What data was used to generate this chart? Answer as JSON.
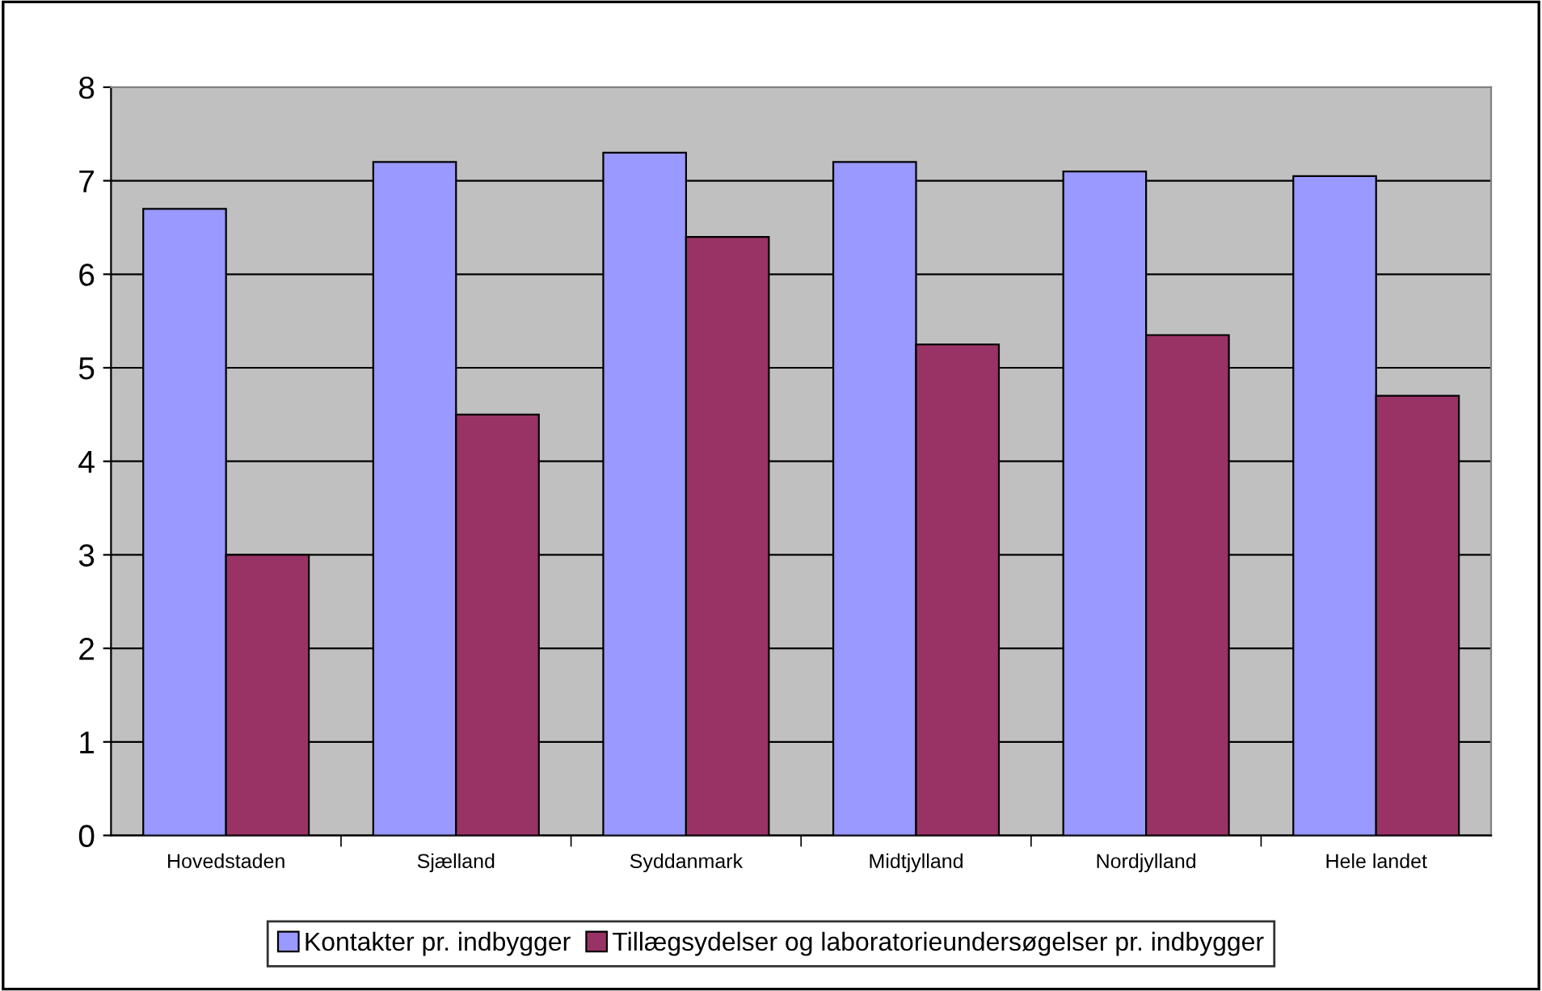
{
  "chart_data": {
    "type": "bar",
    "categories": [
      "Hovedstaden",
      "Sjælland",
      "Syddanmark",
      "Midtjylland",
      "Nordjylland",
      "Hele landet"
    ],
    "series": [
      {
        "name": "Kontakter pr. indbygger",
        "color": "#9999ff",
        "values": [
          6.7,
          7.2,
          7.3,
          7.2,
          7.1,
          7.05
        ]
      },
      {
        "name": "Tillægsydelser og laboratorieundersøgelser pr. indbygger",
        "color": "#993366",
        "values": [
          3.0,
          4.5,
          6.4,
          5.25,
          5.35,
          4.7
        ]
      }
    ],
    "ylim": [
      0,
      8
    ],
    "yticks": [
      0,
      1,
      2,
      3,
      4,
      5,
      6,
      7,
      8
    ],
    "grid": "y",
    "legend": "bottom"
  }
}
